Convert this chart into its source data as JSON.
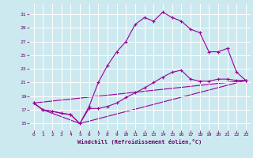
{
  "background_color": "#cce9f0",
  "line_color": "#990099",
  "grid_color": "#ffffff",
  "xlabel": "Windchill (Refroidissement éolien,°C)",
  "xlim": [
    -0.5,
    23.5
  ],
  "ylim": [
    14.0,
    32.5
  ],
  "yticks": [
    15,
    17,
    19,
    21,
    23,
    25,
    27,
    29,
    31
  ],
  "xticks": [
    0,
    1,
    2,
    3,
    4,
    5,
    6,
    7,
    8,
    9,
    10,
    11,
    12,
    13,
    14,
    15,
    16,
    17,
    18,
    19,
    20,
    21,
    22,
    23
  ],
  "series1_x": [
    0,
    1,
    2,
    3,
    4,
    5,
    6,
    7,
    8,
    9,
    10,
    11,
    12,
    13,
    14,
    15,
    16,
    17,
    18,
    19,
    20,
    21,
    22,
    23
  ],
  "series1_y": [
    18.0,
    17.0,
    16.8,
    16.5,
    16.3,
    15.0,
    17.2,
    17.2,
    17.5,
    18.0,
    18.8,
    19.5,
    20.2,
    21.0,
    21.8,
    22.5,
    22.8,
    21.5,
    21.2,
    21.2,
    21.5,
    21.5,
    21.3,
    21.3
  ],
  "series2_x": [
    0,
    1,
    2,
    3,
    4,
    5,
    6,
    7,
    8,
    9,
    10,
    11,
    12,
    13,
    14,
    15,
    16,
    17,
    18,
    19,
    20,
    21,
    22,
    23
  ],
  "series2_y": [
    18.0,
    17.0,
    16.8,
    16.5,
    16.3,
    15.0,
    17.5,
    21.0,
    23.5,
    25.5,
    27.0,
    29.5,
    30.5,
    30.0,
    31.3,
    30.5,
    30.0,
    28.8,
    28.3,
    25.5,
    25.5,
    26.0,
    22.5,
    21.3
  ],
  "series3_x": [
    0,
    1,
    5,
    23
  ],
  "series3_y": [
    18.0,
    17.0,
    15.0,
    21.3
  ],
  "series4_x": [
    0,
    23
  ],
  "series4_y": [
    18.0,
    21.3
  ]
}
